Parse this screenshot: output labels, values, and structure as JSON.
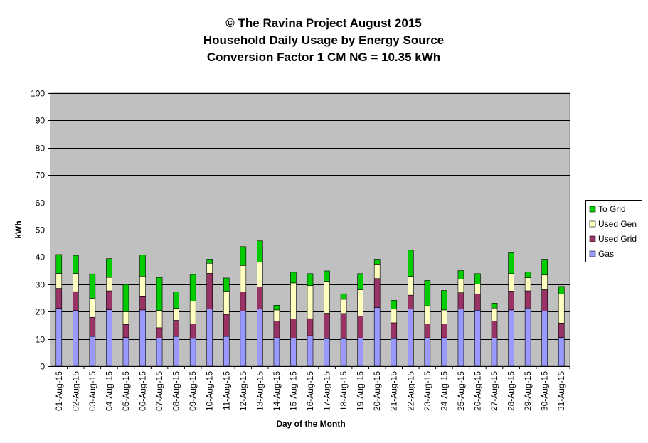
{
  "chart_data": {
    "type": "bar",
    "stacked": true,
    "title_lines": [
      "© The Ravina Project August 2015",
      "Household Daily Usage by Energy Source",
      "Conversion Factor 1 CM NG = 10.35 kWh"
    ],
    "xlabel": "Day of the Month",
    "ylabel": "kWh",
    "ylim": [
      0,
      100
    ],
    "yticks": [
      0,
      10,
      20,
      30,
      40,
      50,
      60,
      70,
      80,
      90,
      100
    ],
    "grid": true,
    "legend_position": "right",
    "categories": [
      "01-Aug-15",
      "02-Aug-15",
      "03-Aug-15",
      "04-Aug-15",
      "05-Aug-15",
      "06-Aug-15",
      "07-Aug-15",
      "08-Aug-15",
      "09-Aug-15",
      "10-Aug-15",
      "11-Aug-15",
      "12-Aug-15",
      "13-Aug-15",
      "14-Aug-15",
      "15-Aug-15",
      "16-Aug-15",
      "17-Aug-15",
      "18-Aug-15",
      "19-Aug-15",
      "20-Aug-15",
      "21-Aug-15",
      "22-Aug-15",
      "23-Aug-15",
      "24-Aug-15",
      "25-Aug-15",
      "26-Aug-15",
      "27-Aug-15",
      "28-Aug-15",
      "29-Aug-15",
      "30-Aug-15",
      "31-Aug-15"
    ],
    "series": [
      {
        "name": "Gas",
        "color": "#9999ff",
        "values": [
          21.2,
          20.4,
          10.9,
          20.7,
          10.5,
          20.6,
          10.3,
          10.9,
          10.2,
          21.0,
          10.9,
          20.2,
          20.9,
          10.4,
          10.3,
          11.2,
          10.1,
          10.1,
          10.3,
          21.5,
          10.1,
          21.0,
          10.4,
          10.4,
          21.0,
          20.5,
          10.3,
          20.6,
          21.3,
          20.2,
          10.5
        ]
      },
      {
        "name": "Used Grid",
        "color": "#993366",
        "values": [
          7.3,
          6.9,
          7.0,
          6.9,
          4.8,
          5.1,
          3.8,
          5.9,
          5.3,
          13.0,
          8.1,
          7.0,
          8.1,
          6.1,
          7.0,
          6.2,
          9.3,
          9.2,
          8.1,
          10.6,
          5.8,
          5.0,
          5.1,
          5.1,
          5.9,
          6.0,
          6.2,
          6.9,
          6.3,
          7.8,
          5.3
        ]
      },
      {
        "name": "Used Gen",
        "color": "#ffffc0",
        "values": [
          5.5,
          6.7,
          7.0,
          4.9,
          4.6,
          7.3,
          6.3,
          4.4,
          8.3,
          3.7,
          8.5,
          9.7,
          9.1,
          4.1,
          13.2,
          12.1,
          11.7,
          5.2,
          9.6,
          5.3,
          5.1,
          6.9,
          6.6,
          5.1,
          5.0,
          3.6,
          4.8,
          6.4,
          4.8,
          5.4,
          10.7
        ]
      },
      {
        "name": "To Grid",
        "color": "#00cc00",
        "values": [
          6.9,
          6.6,
          8.9,
          6.9,
          10.0,
          7.7,
          12.1,
          6.0,
          9.8,
          1.5,
          4.8,
          6.9,
          7.8,
          1.7,
          3.9,
          4.4,
          3.8,
          2.0,
          5.9,
          1.8,
          3.1,
          9.6,
          9.3,
          7.1,
          3.1,
          3.8,
          1.8,
          7.7,
          2.1,
          5.8,
          2.7
        ]
      }
    ]
  }
}
